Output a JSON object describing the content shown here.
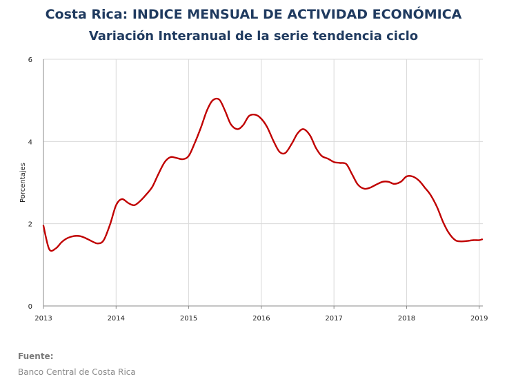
{
  "header": {
    "title": "Costa Rica: INDICE MENSUAL DE ACTIVIDAD ECONÓMICA",
    "subtitle": "Variación Interanual de la serie tendencia ciclo"
  },
  "footer": {
    "source_label": "Fuente:",
    "source_text": "Banco Central de Costa Rica"
  },
  "chart_data": {
    "type": "line",
    "title": "Costa Rica: INDICE MENSUAL DE ACTIVIDAD ECONÓMICA",
    "subtitle": "Variación Interanual de la serie tendencia ciclo",
    "xlabel": "",
    "ylabel": "Porcentajes",
    "xlim": [
      2013,
      2019.05
    ],
    "ylim": [
      0,
      6
    ],
    "x_ticks": [
      "2013",
      "2014",
      "2015",
      "2016",
      "2017",
      "2018",
      "2019"
    ],
    "y_ticks": [
      "0",
      "2",
      "4",
      "6"
    ],
    "grid": "vertical and horizontal",
    "legend": "none",
    "line_color": "#c00000",
    "series": [
      {
        "x": [
          2013.0,
          2013.08,
          2013.17,
          2013.25,
          2013.33,
          2013.42,
          2013.5,
          2013.58,
          2013.67,
          2013.75,
          2013.83,
          2013.92,
          2014.0,
          2014.08,
          2014.17,
          2014.25,
          2014.33,
          2014.42,
          2014.5,
          2014.58,
          2014.67,
          2014.75,
          2014.83,
          2014.92,
          2015.0,
          2015.08,
          2015.17,
          2015.25,
          2015.33,
          2015.42,
          2015.5,
          2015.58,
          2015.67,
          2015.75,
          2015.83,
          2015.92,
          2016.0,
          2016.08,
          2016.17,
          2016.25,
          2016.33,
          2016.42,
          2016.5,
          2016.58,
          2016.67,
          2016.75,
          2016.83,
          2016.92,
          2017.0,
          2017.08,
          2017.17,
          2017.25,
          2017.33,
          2017.42,
          2017.5,
          2017.58,
          2017.67,
          2017.75,
          2017.83,
          2017.92,
          2018.0,
          2018.08,
          2018.17,
          2018.25,
          2018.33,
          2018.42,
          2018.5,
          2018.58,
          2018.67,
          2018.75,
          2018.83,
          2018.92,
          2019.0,
          2019.04
        ],
        "y": [
          1.95,
          1.38,
          1.4,
          1.55,
          1.65,
          1.7,
          1.7,
          1.65,
          1.57,
          1.52,
          1.6,
          2.0,
          2.45,
          2.6,
          2.5,
          2.45,
          2.55,
          2.72,
          2.9,
          3.2,
          3.5,
          3.62,
          3.6,
          3.57,
          3.65,
          3.95,
          4.35,
          4.75,
          5.0,
          5.02,
          4.75,
          4.42,
          4.3,
          4.4,
          4.62,
          4.65,
          4.55,
          4.35,
          4.0,
          3.75,
          3.72,
          3.95,
          4.2,
          4.3,
          4.15,
          3.85,
          3.65,
          3.58,
          3.5,
          3.48,
          3.45,
          3.2,
          2.95,
          2.85,
          2.88,
          2.95,
          3.02,
          3.02,
          2.97,
          3.02,
          3.15,
          3.15,
          3.05,
          2.88,
          2.7,
          2.4,
          2.05,
          1.78,
          1.6,
          1.57,
          1.58,
          1.6,
          1.6,
          1.62
        ]
      }
    ]
  }
}
